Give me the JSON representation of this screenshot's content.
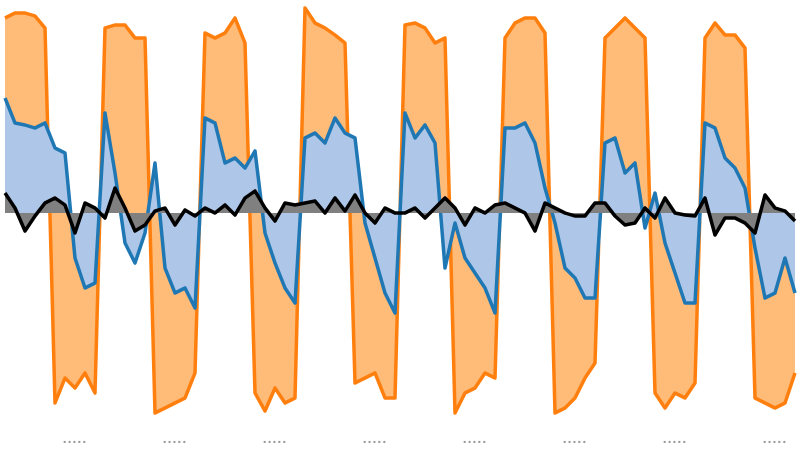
{
  "chart_data": {
    "type": "area",
    "categories": [
      null,
      null,
      null,
      null,
      null,
      null,
      null,
      ".....",
      null,
      null,
      null,
      null,
      null,
      null,
      null,
      null,
      null,
      ".....",
      null,
      null,
      null,
      null,
      null,
      null,
      null,
      null,
      null,
      ".....",
      null,
      null,
      null,
      null,
      null,
      null,
      null,
      null,
      null,
      ".....",
      null,
      null,
      null,
      null,
      null,
      null,
      null,
      null,
      null,
      ".....",
      null,
      null,
      null,
      null,
      null,
      null,
      null,
      null,
      null,
      ".....",
      null,
      null,
      null,
      null,
      null,
      null,
      null,
      null,
      null,
      ".....",
      null,
      null,
      null,
      null,
      null,
      null,
      null,
      null,
      null,
      ".....",
      null,
      null
    ],
    "ylim": [
      -237,
      213
    ],
    "series": [
      {
        "color": "#ff7f0e",
        "fill": "#ffbb78",
        "values": [
          195,
          200,
          200,
          197,
          185,
          -190,
          -165,
          -175,
          -160,
          -180,
          185,
          188,
          188,
          175,
          175,
          -200,
          -195,
          -190,
          -185,
          -160,
          180,
          175,
          180,
          195,
          170,
          -180,
          -198,
          -175,
          -190,
          -185,
          205,
          190,
          185,
          178,
          170,
          -170,
          -165,
          -160,
          -185,
          -185,
          188,
          190,
          185,
          170,
          175,
          -200,
          -180,
          -175,
          -160,
          -165,
          175,
          190,
          195,
          195,
          180,
          -200,
          -195,
          -185,
          -165,
          -150,
          175,
          185,
          195,
          185,
          175,
          -180,
          -195,
          -180,
          -185,
          -170,
          175,
          190,
          178,
          178,
          165,
          -185,
          -190,
          -195,
          -190,
          -160
        ]
      },
      {
        "color": "#1f77b4",
        "fill": "#aec7e8",
        "values": [
          115,
          90,
          88,
          85,
          90,
          65,
          60,
          -45,
          -75,
          -70,
          100,
          40,
          -30,
          -50,
          -20,
          50,
          -55,
          -80,
          -75,
          -95,
          95,
          90,
          50,
          55,
          45,
          62,
          -20,
          -50,
          -75,
          -90,
          75,
          80,
          70,
          95,
          80,
          75,
          -10,
          -45,
          -80,
          -100,
          100,
          75,
          88,
          70,
          -55,
          -10,
          -45,
          -60,
          -75,
          -100,
          85,
          85,
          90,
          70,
          25,
          -10,
          -55,
          -65,
          -85,
          -85,
          70,
          75,
          40,
          50,
          -15,
          20,
          -30,
          -60,
          -90,
          -90,
          90,
          85,
          55,
          45,
          25,
          -35,
          -85,
          -80,
          -45,
          -80
        ]
      },
      {
        "color": "#000000",
        "fill": "#808080",
        "values": [
          20,
          5,
          -18,
          -3,
          10,
          15,
          8,
          -20,
          10,
          5,
          -5,
          25,
          5,
          -18,
          -12,
          2,
          5,
          -12,
          3,
          -3,
          5,
          0,
          8,
          -2,
          15,
          22,
          5,
          -8,
          10,
          8,
          10,
          12,
          0,
          15,
          2,
          18,
          0,
          -10,
          5,
          0,
          0,
          5,
          -5,
          5,
          15,
          5,
          -12,
          5,
          0,
          8,
          10,
          5,
          0,
          -18,
          10,
          5,
          0,
          -3,
          -3,
          10,
          10,
          -3,
          -12,
          -10,
          5,
          -5,
          15,
          0,
          -2,
          -3,
          15,
          -22,
          -5,
          -5,
          -10,
          -20,
          18,
          5,
          2,
          -8
        ]
      }
    ]
  }
}
